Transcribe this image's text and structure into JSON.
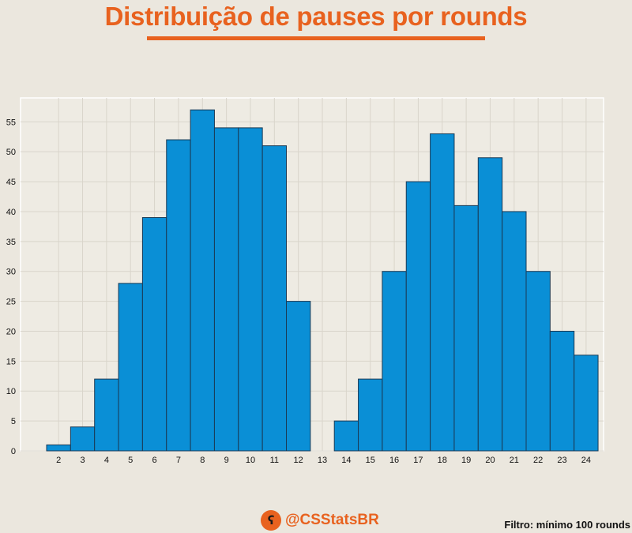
{
  "title": "Distribuição de pauses por rounds",
  "chart_data": {
    "type": "bar",
    "title": "Distribuição de pauses por rounds",
    "xlabel": "",
    "ylabel": "",
    "categories": [
      "2",
      "3",
      "4",
      "5",
      "6",
      "7",
      "8",
      "9",
      "10",
      "11",
      "12",
      "13",
      "14",
      "15",
      "16",
      "17",
      "18",
      "19",
      "20",
      "21",
      "22",
      "23",
      "24"
    ],
    "values": [
      1,
      4,
      12,
      28,
      39,
      52,
      57,
      54,
      54,
      51,
      25,
      0,
      5,
      12,
      30,
      45,
      53,
      41,
      49,
      40,
      30,
      20,
      16
    ],
    "ylim": [
      0,
      59
    ],
    "yticks": [
      0,
      5,
      10,
      15,
      20,
      25,
      30,
      35,
      40,
      45,
      50,
      55
    ],
    "grid": true,
    "bar_color": "#0a8fd6",
    "bar_edge_color": "#1a3a55"
  },
  "footer": {
    "brand_handle": "@CSStatsBR",
    "brand_icon": "bear-face-icon",
    "filter_note": "Filtro: mínimo 100 rounds"
  },
  "colors": {
    "accent": "#e8621f",
    "background": "#ebe7de",
    "plot_background": "#eeebe3"
  }
}
